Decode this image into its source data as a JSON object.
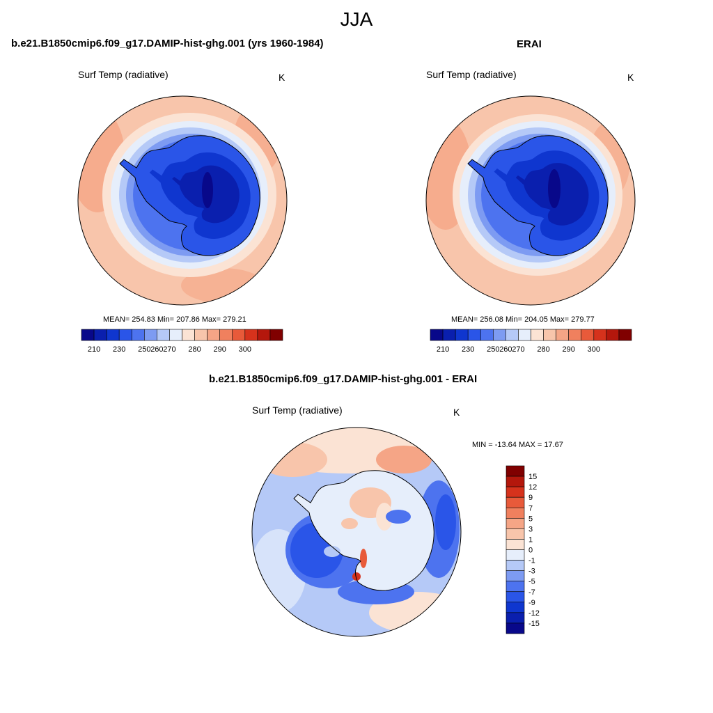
{
  "figure": {
    "season": "JJA"
  },
  "colors": {
    "abs_scale": [
      "#08088a",
      "#0a1fae",
      "#0f36cf",
      "#2a55e8",
      "#4d73ef",
      "#7d9bf2",
      "#b5c9f7",
      "#e6eefb",
      "#fbe3d4",
      "#f8c5ab",
      "#f5a586",
      "#f0805e",
      "#e85a3a",
      "#d6321c",
      "#b4170c",
      "#800000"
    ],
    "diff_scale": [
      "#08088a",
      "#0a1fae",
      "#0f36cf",
      "#2a55e8",
      "#4d73ef",
      "#7d9bf2",
      "#b5c9f7",
      "#e6eefb",
      "#fbe3d4",
      "#f8c5ab",
      "#f5a586",
      "#f0805e",
      "#e85a3a",
      "#d6321c",
      "#b4170c",
      "#800000"
    ],
    "coast": "#000000"
  },
  "panels": {
    "model": {
      "title": "b.e21.B1850cmip6.f09_g17.DAMIP-hist-ghg.001 (yrs 1960-1984)",
      "variable": "Surf Temp (radiative)",
      "units": "K",
      "stats": "MEAN= 254.83  Min= 207.86  Max= 279.21",
      "colorbar_ticks": [
        "210",
        "230",
        "250",
        "260",
        "270",
        "280",
        "290",
        "300"
      ]
    },
    "obs": {
      "title": "ERAI",
      "variable": "Surf Temp (radiative)",
      "units": "K",
      "stats": "MEAN= 256.08  Min= 204.05  Max= 279.77",
      "colorbar_ticks": [
        "210",
        "230",
        "250",
        "260",
        "270",
        "280",
        "290",
        "300"
      ]
    },
    "diff": {
      "title": "b.e21.B1850cmip6.f09_g17.DAMIP-hist-ghg.001 - ERAI",
      "variable": "Surf Temp (radiative)",
      "units": "K",
      "stats": "MIN = -13.64 MAX =  17.67",
      "colorbar_ticks": [
        "15",
        "12",
        "9",
        "7",
        "5",
        "3",
        "1",
        "0",
        "-1",
        "-3",
        "-5",
        "-7",
        "-9",
        "-12",
        "-15"
      ]
    }
  }
}
